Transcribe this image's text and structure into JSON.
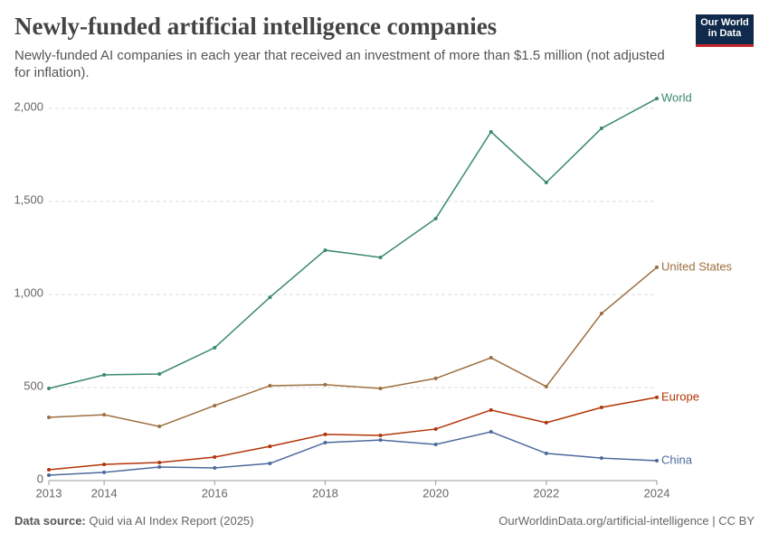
{
  "logo": {
    "line1": "Our World",
    "line2": "in Data"
  },
  "chart_data": {
    "type": "line",
    "title": "Newly-funded artificial intelligence companies",
    "subtitle": "Newly-funded AI companies in each year that received an investment of more than $1.5 million (not adjusted for inflation).",
    "x": [
      2013,
      2014,
      2015,
      2016,
      2017,
      2018,
      2019,
      2020,
      2021,
      2022,
      2023,
      2024
    ],
    "xlim": [
      2013,
      2024
    ],
    "xticks": [
      2013,
      2014,
      2016,
      2018,
      2020,
      2022,
      2024
    ],
    "ylim": [
      0,
      2000
    ],
    "yticks": [
      0,
      500,
      {
        "value": 1000,
        "label": "1,000"
      },
      {
        "value": 1500,
        "label": "1,500"
      },
      {
        "value": 2000,
        "label": "2,000"
      }
    ],
    "grid": true,
    "series": [
      {
        "name": "World",
        "color": "#3a8a6c",
        "values": [
          495,
          568,
          573,
          714,
          985,
          1238,
          1199,
          1408,
          1874,
          1602,
          1893,
          2053
        ]
      },
      {
        "name": "United States",
        "color": "#9c6f40",
        "values": [
          340,
          354,
          291,
          403,
          510,
          515,
          495,
          549,
          660,
          505,
          898,
          1146
        ]
      },
      {
        "name": "Europe",
        "color": "#b13507",
        "values": [
          58,
          87,
          97,
          126,
          184,
          248,
          243,
          277,
          379,
          311,
          393,
          447
        ]
      },
      {
        "name": "China",
        "color": "#4c6a9c",
        "values": [
          29,
          44,
          73,
          68,
          92,
          204,
          218,
          194,
          262,
          146,
          121,
          107
        ]
      }
    ]
  },
  "footer": {
    "source_label": "Data source:",
    "source": "Quid via AI Index Report (2025)",
    "url": "OurWorldinData.org/artificial-intelligence | CC BY"
  }
}
